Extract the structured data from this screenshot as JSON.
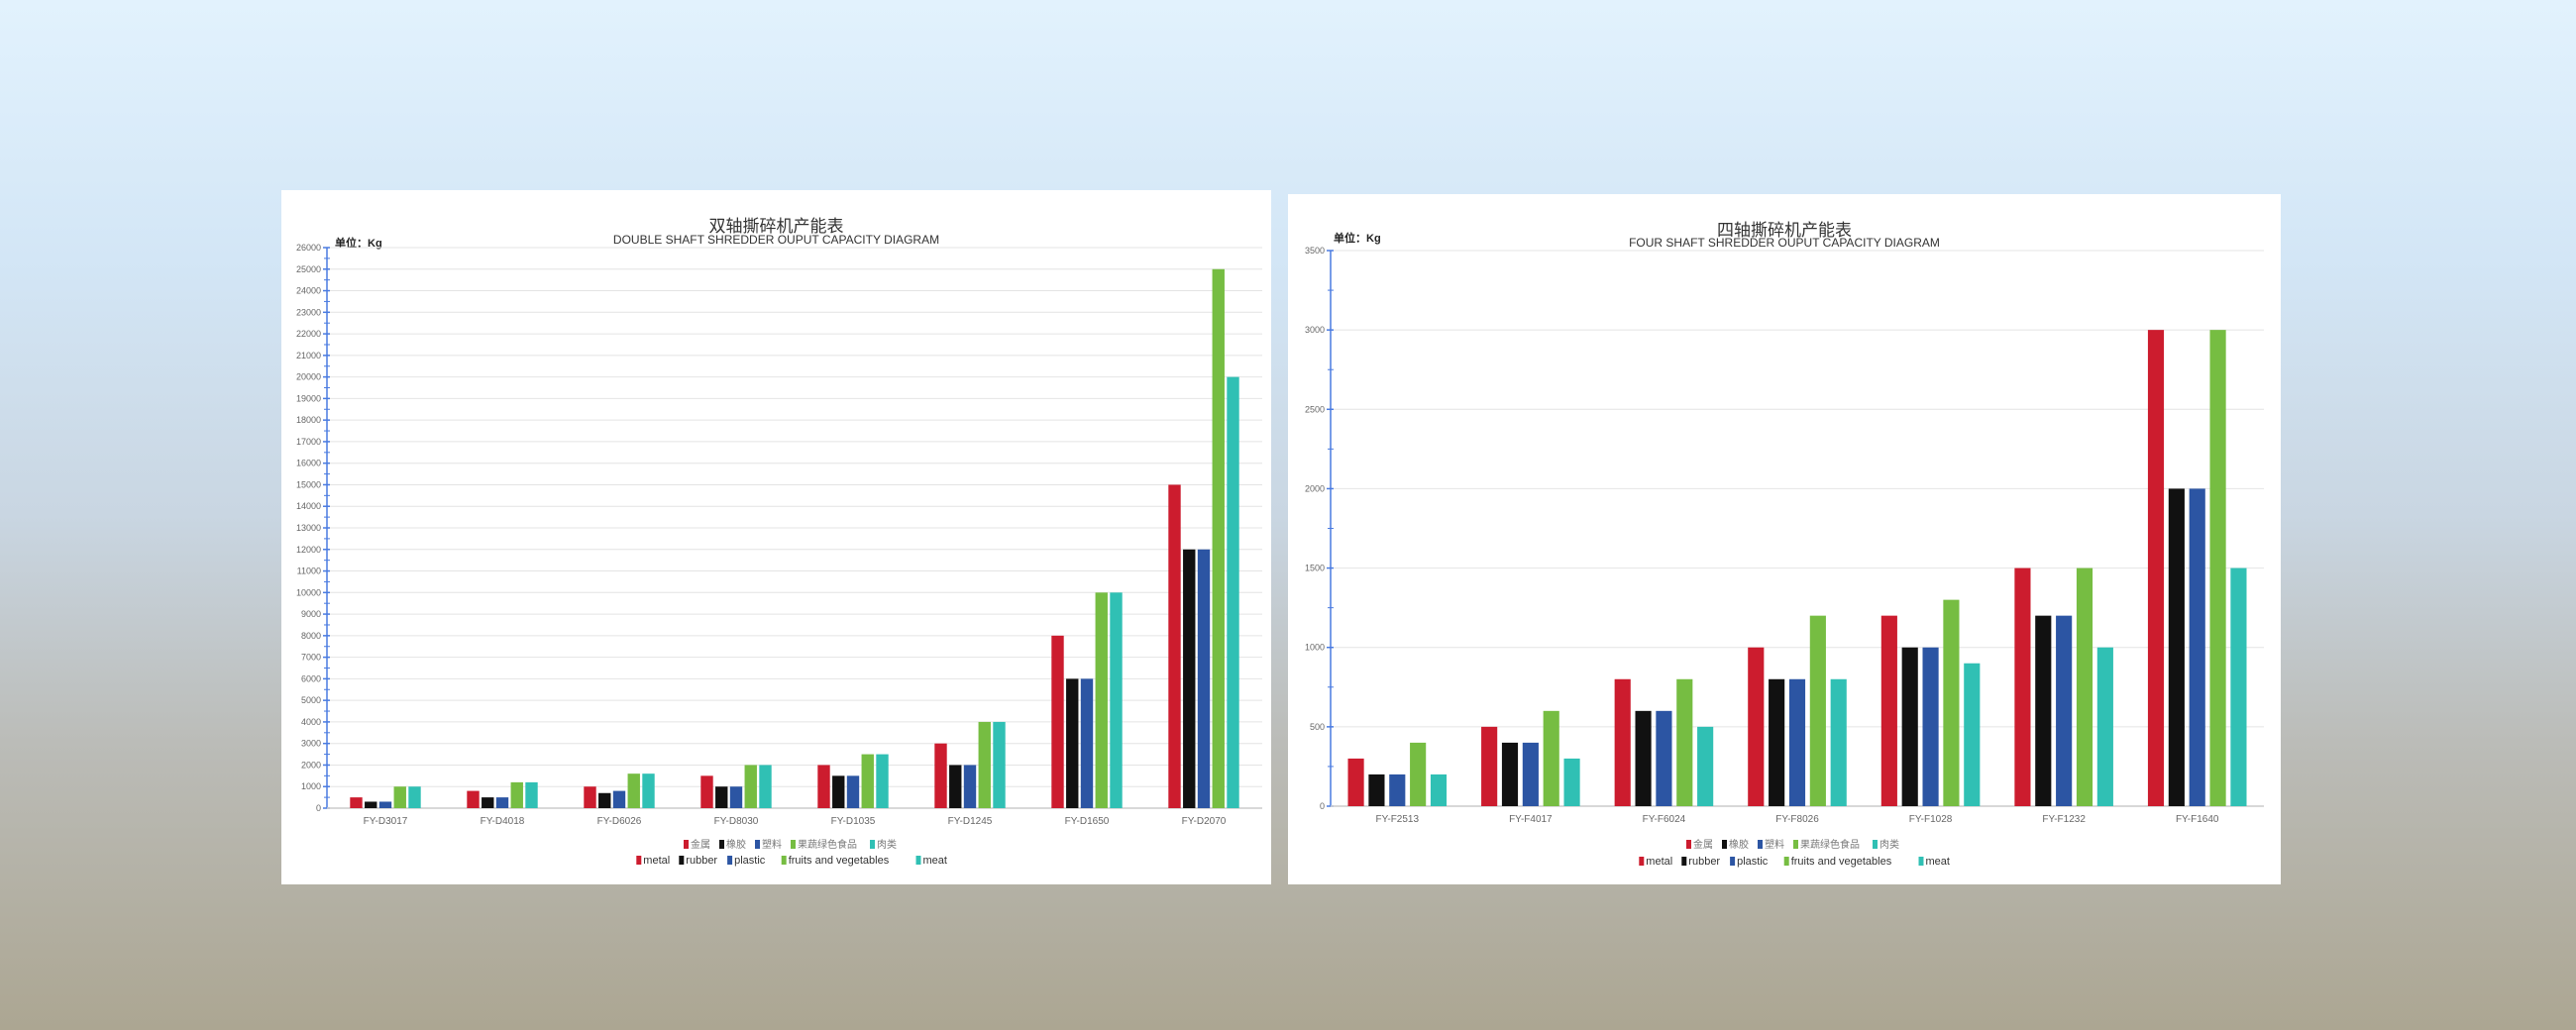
{
  "colors": {
    "metal": "#cc1c2e",
    "rubber": "#111111",
    "plastic": "#2c55a3",
    "fruits": "#76bd42",
    "meat": "#30c0b4",
    "axis": "#4a7be0",
    "grid": "#e4e4e4"
  },
  "chart_data": [
    {
      "type": "bar",
      "title": "双轴撕碎机产能表",
      "subtitle": "DOUBLE SHAFT SHREDDER OUPUT CAPACITY DIAGRAM",
      "ylabel": "单位：Kg",
      "ylim": [
        0,
        26000
      ],
      "ytick_step": 1000,
      "grid": true,
      "legend_position": "bottom",
      "legend_cn": [
        "金属",
        "橡胶",
        "塑料",
        "果蔬绿色食品",
        "肉类"
      ],
      "categories": [
        "FY-D3017",
        "FY-D4018",
        "FY-D6026",
        "FY-D8030",
        "FY-D1035",
        "FY-D1245",
        "FY-D1650",
        "FY-D2070"
      ],
      "series": [
        {
          "name": "metal",
          "values": [
            500,
            800,
            1000,
            1500,
            2000,
            3000,
            8000,
            15000
          ]
        },
        {
          "name": "rubber",
          "values": [
            300,
            500,
            700,
            1000,
            1500,
            2000,
            6000,
            12000
          ]
        },
        {
          "name": "plastic",
          "values": [
            300,
            500,
            800,
            1000,
            1500,
            2000,
            6000,
            12000
          ]
        },
        {
          "name": "fruits and vegetables",
          "values": [
            1000,
            1200,
            1600,
            2000,
            2500,
            4000,
            10000,
            25000
          ]
        },
        {
          "name": "meat",
          "values": [
            1000,
            1200,
            1600,
            2000,
            2500,
            4000,
            10000,
            20000
          ]
        }
      ]
    },
    {
      "type": "bar",
      "title": "四轴撕碎机产能表",
      "subtitle": "FOUR SHAFT SHREDDER OUPUT CAPACITY DIAGRAM",
      "ylabel": "单位：Kg",
      "ylim": [
        0,
        3500
      ],
      "ytick_step": 500,
      "grid": true,
      "legend_position": "bottom",
      "legend_cn": [
        "金属",
        "橡胶",
        "塑料",
        "果蔬绿色食品",
        "肉类"
      ],
      "categories": [
        "FY-F2513",
        "FY-F4017",
        "FY-F6024",
        "FY-F8026",
        "FY-F1028",
        "FY-F1232",
        "FY-F1640"
      ],
      "series": [
        {
          "name": "metal",
          "values": [
            300,
            500,
            800,
            1000,
            1200,
            1500,
            3000
          ]
        },
        {
          "name": "rubber",
          "values": [
            200,
            400,
            600,
            800,
            1000,
            1200,
            2000
          ]
        },
        {
          "name": "plastic",
          "values": [
            200,
            400,
            600,
            800,
            1000,
            1200,
            2000
          ]
        },
        {
          "name": "fruits and vegetables",
          "values": [
            400,
            600,
            800,
            1200,
            1300,
            1500,
            3000
          ]
        },
        {
          "name": "meat",
          "values": [
            200,
            300,
            500,
            800,
            900,
            1000,
            1500
          ]
        }
      ]
    }
  ]
}
